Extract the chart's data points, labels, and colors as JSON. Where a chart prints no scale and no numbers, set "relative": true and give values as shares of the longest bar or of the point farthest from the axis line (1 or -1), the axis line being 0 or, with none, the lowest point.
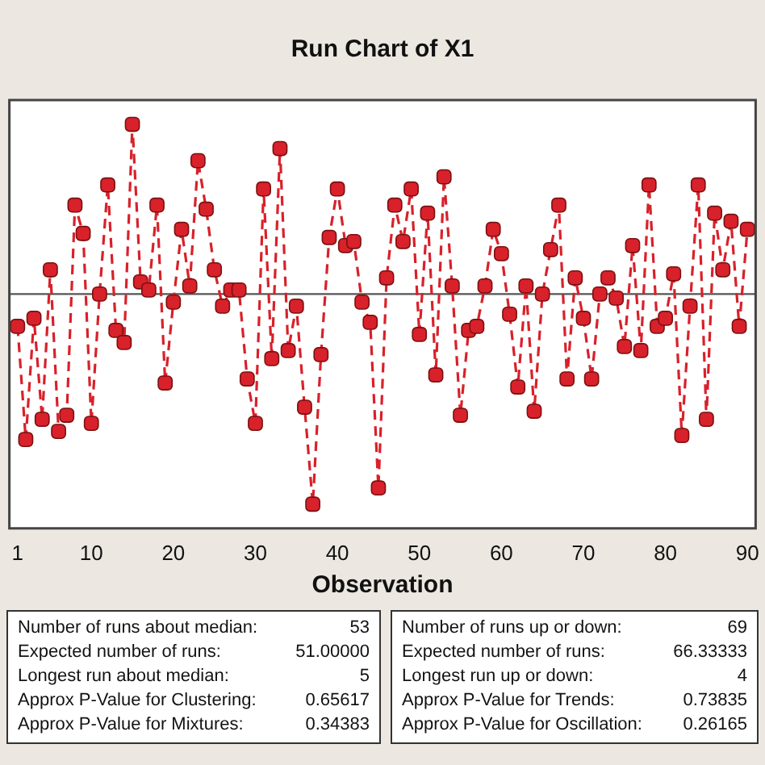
{
  "chart_data": {
    "type": "line",
    "title": "Run Chart of X1",
    "xlabel": "Observation",
    "relative": true,
    "x": [
      1,
      2,
      3,
      4,
      5,
      6,
      7,
      8,
      9,
      10,
      11,
      12,
      13,
      14,
      15,
      16,
      17,
      18,
      19,
      20,
      21,
      22,
      23,
      24,
      25,
      26,
      27,
      28,
      29,
      30,
      31,
      32,
      33,
      34,
      35,
      36,
      37,
      38,
      39,
      40,
      41,
      42,
      43,
      44,
      45,
      46,
      47,
      48,
      49,
      50,
      51,
      52,
      53,
      54,
      55,
      56,
      57,
      58,
      59,
      60,
      61,
      62,
      63,
      64,
      65,
      66,
      67,
      68,
      69,
      70,
      71,
      72,
      73,
      74,
      75,
      76,
      77,
      78,
      79,
      80,
      81,
      82,
      83,
      84,
      85,
      86,
      87,
      88,
      89,
      90
    ],
    "series": [
      {
        "color": "#d8212a",
        "values": [
          0.5,
          0.22,
          0.52,
          0.27,
          0.64,
          0.24,
          0.28,
          0.8,
          0.73,
          0.26,
          0.58,
          0.85,
          0.49,
          0.46,
          1.0,
          0.61,
          0.59,
          0.8,
          0.36,
          0.56,
          0.74,
          0.6,
          0.91,
          0.79,
          0.64,
          0.55,
          0.59,
          0.59,
          0.37,
          0.26,
          0.84,
          0.42,
          0.94,
          0.44,
          0.55,
          0.3,
          0.06,
          0.43,
          0.72,
          0.84,
          0.7,
          0.71,
          0.56,
          0.51,
          0.1,
          0.62,
          0.8,
          0.71,
          0.84,
          0.48,
          0.78,
          0.38,
          0.87,
          0.6,
          0.28,
          0.49,
          0.5,
          0.6,
          0.74,
          0.68,
          0.53,
          0.35,
          0.6,
          0.29,
          0.58,
          0.69,
          0.8,
          0.37,
          0.62,
          0.52,
          0.37,
          0.58,
          0.62,
          0.57,
          0.45,
          0.7,
          0.44,
          0.85,
          0.5,
          0.52,
          0.63,
          0.23,
          0.55,
          0.85,
          0.27,
          0.78,
          0.64,
          0.76,
          0.5,
          0.74
        ]
      }
    ],
    "xlim": [
      0,
      91
    ],
    "xticks": [
      1,
      10,
      20,
      30,
      40,
      50,
      60,
      70,
      80,
      90
    ],
    "ref_lines": [
      {
        "axis": "y",
        "value": 0.58,
        "color": "#555555"
      }
    ],
    "marker": "square",
    "line_style": "dashed",
    "grid": false,
    "legend": false,
    "annotations": [
      "Number of runs about median: 53",
      "Expected number of runs: 51.00000",
      "Longest run about median: 5",
      "Approx P-Value for Clustering: 0.65617",
      "Approx P-Value for Mixtures: 0.34383",
      "Number of runs up or down: 69",
      "Expected number of runs: 66.33333",
      "Longest run up or down: 4",
      "Approx P-Value for Trends: 0.73835",
      "Approx P-Value for Oscillation: 0.26165"
    ]
  }
}
